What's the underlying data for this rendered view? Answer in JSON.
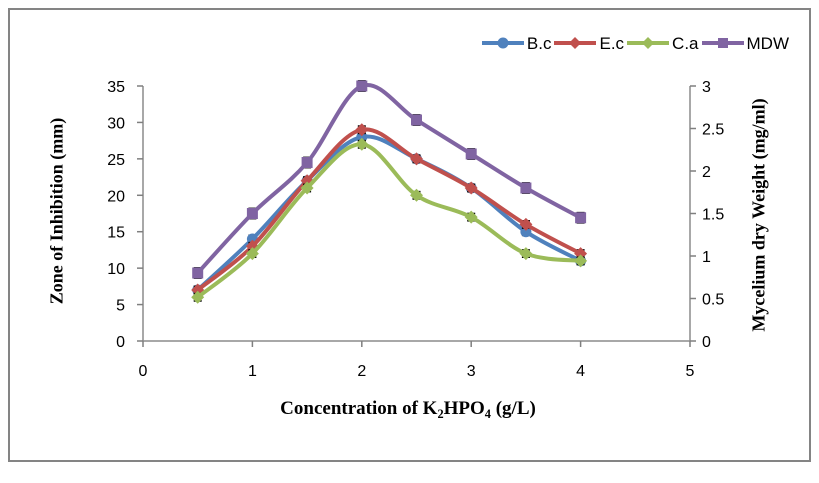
{
  "chart_data": {
    "type": "line",
    "x": [
      0.5,
      1,
      1.5,
      2,
      2.5,
      3,
      3.5,
      4
    ],
    "series": [
      {
        "name": "B.c",
        "axis": "left",
        "color": "#4F81BD",
        "marker": "circle",
        "values": [
          7,
          14,
          22,
          28,
          25,
          21,
          15,
          11
        ],
        "error": 0.5
      },
      {
        "name": "E.c",
        "axis": "left",
        "color": "#C0504D",
        "marker": "diamond",
        "values": [
          7,
          13,
          22,
          29,
          25,
          21,
          16,
          12
        ],
        "error": 0.5
      },
      {
        "name": "C.a",
        "axis": "left",
        "color": "#9BBB59",
        "marker": "diamond",
        "values": [
          6,
          12,
          21,
          27,
          20,
          17,
          12,
          11
        ],
        "error": 0.5
      },
      {
        "name": "MDW",
        "axis": "right",
        "color": "#8064A2",
        "marker": "square",
        "values": [
          0.8,
          1.5,
          2.1,
          3.0,
          2.6,
          2.2,
          1.8,
          1.45
        ],
        "error": 0.06
      }
    ],
    "title": "",
    "xlabel_parts": [
      {
        "text": "Concentration of K",
        "sub": false
      },
      {
        "text": "2",
        "sub": true
      },
      {
        "text": "HPO",
        "sub": false
      },
      {
        "text": "4",
        "sub": true
      },
      {
        "text": " (g/L)",
        "sub": false
      }
    ],
    "ylabel_left": "Zone of Inhibition (mm)",
    "ylabel_right": "Mycelium dry Weight (mg/ml)",
    "x_axis": {
      "min": 0,
      "max": 5,
      "ticks": [
        "0",
        "1",
        "2",
        "3",
        "4",
        "5"
      ]
    },
    "y_left": {
      "min": 0,
      "max": 35,
      "ticks": [
        "0",
        "5",
        "10",
        "15",
        "20",
        "25",
        "30",
        "35"
      ]
    },
    "y_right": {
      "min": 0,
      "max": 3,
      "ticks": [
        "0",
        "0.5",
        "1",
        "1.5",
        "2",
        "2.5",
        "3"
      ]
    },
    "legend_position": "top-right",
    "grid": "off",
    "smooth_lines": true,
    "colors": {
      "axis_line": "#8C8C8C",
      "tick_mark": "#7F7F7F",
      "error_bar": "#000000",
      "figure_border": "#848484",
      "background": "#FFFFFF"
    }
  }
}
